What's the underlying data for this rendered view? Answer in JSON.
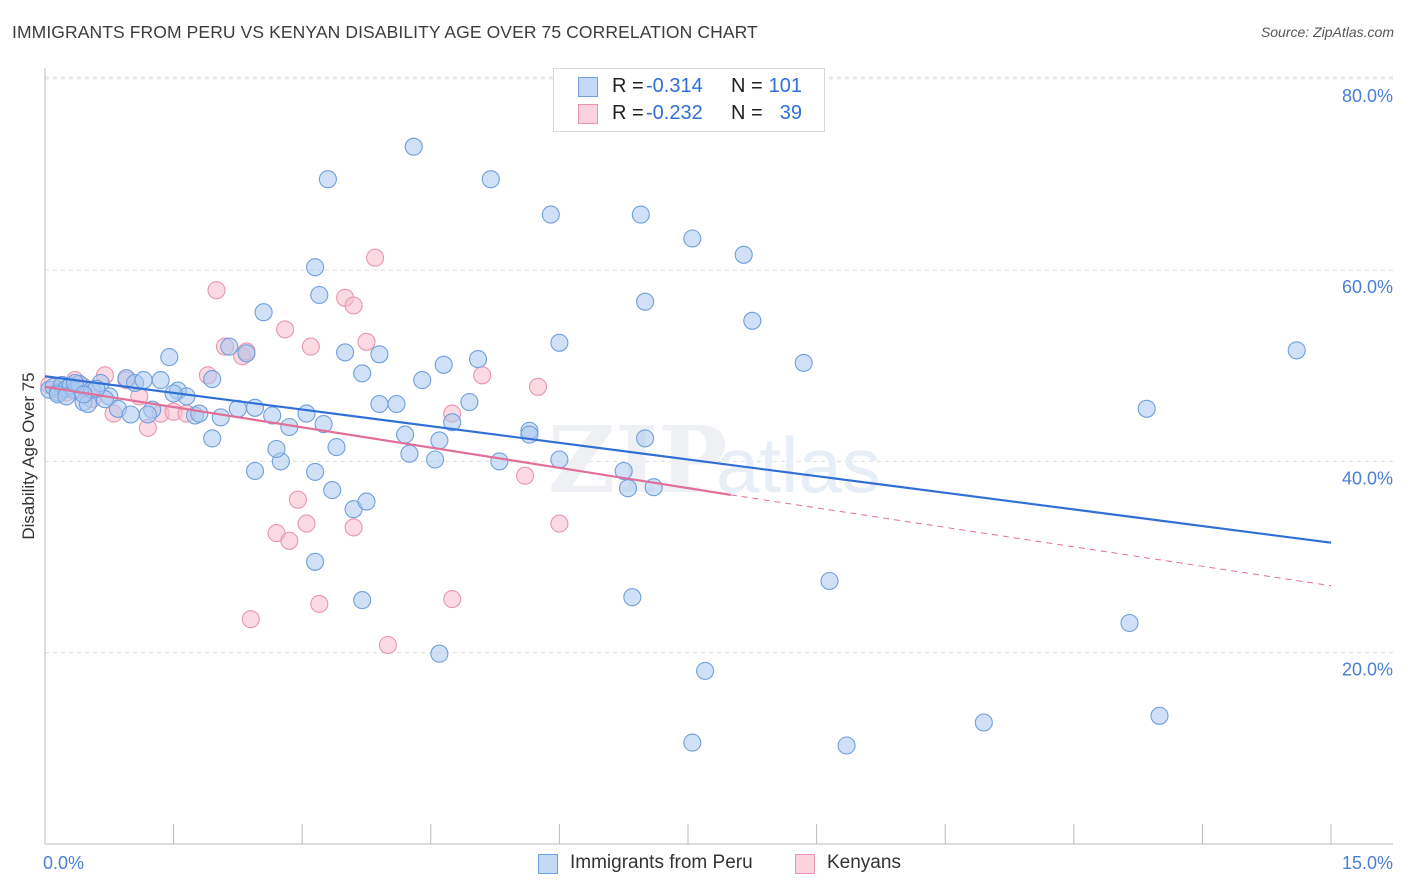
{
  "header": {
    "title": "IMMIGRANTS FROM PERU VS KENYAN DISABILITY AGE OVER 75 CORRELATION CHART",
    "source": "Source: ZipAtlas.com"
  },
  "stats_legend": {
    "rows": [
      {
        "r_label": "R =",
        "r_value": "-0.314",
        "n_label": "N =",
        "n_value": "101"
      },
      {
        "r_label": "R =",
        "r_value": "-0.232",
        "n_label": "N =",
        "n_value": "39"
      }
    ]
  },
  "watermark": {
    "bold": "ZIP",
    "light": "atlas"
  },
  "colors": {
    "peru_fill": "#aac8f0",
    "peru_stroke": "#6f9fdc",
    "peru_line": "#2f6fd6",
    "kenya_fill": "#f7bccd",
    "kenya_stroke": "#e896b0",
    "kenya_line": "#e0709a",
    "axis_label": "#4a7fd4",
    "grid": "#dcdcdc"
  },
  "chart_data": {
    "type": "scatter",
    "title": "IMMIGRANTS FROM PERU VS KENYAN DISABILITY AGE OVER 75 CORRELATION CHART",
    "xlabel": "",
    "ylabel": "Disability Age Over 75",
    "xlim": [
      0,
      15
    ],
    "ylim": [
      0,
      85
    ],
    "x_tick_labels": [
      "0.0%",
      "15.0%"
    ],
    "y_ticks": [
      20,
      40,
      60,
      80
    ],
    "y_tick_labels": [
      "20.0%",
      "40.0%",
      "60.0%",
      "80.0%"
    ],
    "grid": "horizontal-dashed",
    "legend_position": "top-center and bottom",
    "series": [
      {
        "name": "Immigrants from Peru",
        "color": "#6f9fdc",
        "points": [
          [
            0.05,
            47.5
          ],
          [
            0.1,
            47.8
          ],
          [
            0.15,
            47.2
          ],
          [
            0.2,
            48.0
          ],
          [
            0.25,
            47.6
          ],
          [
            0.3,
            47.9
          ],
          [
            0.35,
            47.4
          ],
          [
            0.4,
            48.1
          ],
          [
            0.45,
            46.2
          ],
          [
            0.5,
            46.0
          ],
          [
            0.55,
            47.5
          ],
          [
            0.65,
            48.2
          ],
          [
            0.75,
            46.8
          ],
          [
            0.85,
            45.5
          ],
          [
            0.95,
            48.7
          ],
          [
            1.05,
            48.2
          ],
          [
            1.15,
            48.5
          ],
          [
            1.25,
            45.4
          ],
          [
            1.35,
            48.5
          ],
          [
            1.45,
            50.9
          ],
          [
            1.55,
            47.4
          ],
          [
            1.65,
            46.8
          ],
          [
            1.75,
            44.8
          ],
          [
            1.95,
            48.6
          ],
          [
            2.15,
            52.0
          ],
          [
            2.35,
            51.3
          ],
          [
            2.55,
            55.6
          ],
          [
            1.2,
            44.9
          ],
          [
            0.7,
            46.5
          ],
          [
            1.8,
            45.0
          ],
          [
            2.05,
            44.6
          ],
          [
            2.25,
            45.5
          ],
          [
            2.45,
            45.6
          ],
          [
            2.65,
            44.8
          ],
          [
            2.85,
            43.6
          ],
          [
            3.05,
            45.0
          ],
          [
            3.25,
            43.9
          ],
          [
            1.95,
            42.4
          ],
          [
            1.5,
            47.1
          ],
          [
            1.0,
            44.9
          ],
          [
            2.45,
            39.0
          ],
          [
            2.75,
            40.0
          ],
          [
            3.15,
            38.9
          ],
          [
            2.7,
            41.3
          ],
          [
            3.4,
            41.5
          ],
          [
            3.6,
            35.0
          ],
          [
            3.35,
            37.0
          ],
          [
            3.75,
            35.8
          ],
          [
            3.7,
            49.2
          ],
          [
            3.9,
            46.0
          ],
          [
            4.1,
            46.0
          ],
          [
            4.2,
            42.8
          ],
          [
            4.4,
            48.5
          ],
          [
            4.65,
            50.1
          ],
          [
            4.75,
            44.1
          ],
          [
            4.95,
            46.2
          ],
          [
            5.05,
            50.7
          ],
          [
            3.15,
            29.5
          ],
          [
            3.5,
            51.4
          ],
          [
            3.9,
            51.2
          ],
          [
            4.25,
            40.8
          ],
          [
            4.55,
            40.2
          ],
          [
            4.6,
            42.2
          ],
          [
            4.6,
            19.9
          ],
          [
            3.7,
            25.5
          ],
          [
            3.3,
            69.5
          ],
          [
            3.2,
            57.4
          ],
          [
            3.15,
            60.3
          ],
          [
            4.3,
            72.9
          ],
          [
            5.2,
            69.5
          ],
          [
            5.9,
            65.8
          ],
          [
            6.95,
            65.8
          ],
          [
            7.55,
            63.3
          ],
          [
            8.15,
            61.6
          ],
          [
            6.0,
            52.4
          ],
          [
            7.0,
            56.7
          ],
          [
            8.25,
            54.7
          ],
          [
            8.85,
            50.3
          ],
          [
            7.0,
            42.4
          ],
          [
            6.0,
            40.2
          ],
          [
            5.65,
            43.2
          ],
          [
            5.65,
            42.8
          ],
          [
            5.3,
            40.0
          ],
          [
            6.75,
            39.0
          ],
          [
            6.8,
            37.2
          ],
          [
            7.1,
            37.3
          ],
          [
            6.85,
            25.8
          ],
          [
            7.7,
            18.1
          ],
          [
            9.15,
            27.5
          ],
          [
            9.35,
            10.3
          ],
          [
            7.55,
            10.6
          ],
          [
            10.95,
            12.7
          ],
          [
            12.65,
            23.1
          ],
          [
            13.0,
            13.4
          ],
          [
            12.85,
            45.5
          ],
          [
            14.6,
            51.6
          ],
          [
            0.15,
            47.0
          ],
          [
            0.25,
            46.8
          ],
          [
            0.6,
            47.6
          ],
          [
            0.35,
            48.2
          ],
          [
            0.45,
            47.0
          ]
        ],
        "trend": {
          "x0": 0,
          "y0": 48.9,
          "x1": 15,
          "y1": 31.5
        }
      },
      {
        "name": "Kenyans",
        "color": "#e896b0",
        "points": [
          [
            0.05,
            48.0
          ],
          [
            0.15,
            47.5
          ],
          [
            0.25,
            47.2
          ],
          [
            0.35,
            48.5
          ],
          [
            0.45,
            47.8
          ],
          [
            0.55,
            46.5
          ],
          [
            0.7,
            49.0
          ],
          [
            0.8,
            45.0
          ],
          [
            0.95,
            48.5
          ],
          [
            1.1,
            46.8
          ],
          [
            1.2,
            43.5
          ],
          [
            1.35,
            45.0
          ],
          [
            1.5,
            45.2
          ],
          [
            1.65,
            45.0
          ],
          [
            1.9,
            49.0
          ],
          [
            2.0,
            57.9
          ],
          [
            2.1,
            52.0
          ],
          [
            2.3,
            51.0
          ],
          [
            2.35,
            51.5
          ],
          [
            2.8,
            53.8
          ],
          [
            3.1,
            52.0
          ],
          [
            3.5,
            57.1
          ],
          [
            3.6,
            56.3
          ],
          [
            3.85,
            61.3
          ],
          [
            3.75,
            52.5
          ],
          [
            2.95,
            36.0
          ],
          [
            2.7,
            32.5
          ],
          [
            2.85,
            31.7
          ],
          [
            3.05,
            33.5
          ],
          [
            3.6,
            33.1
          ],
          [
            2.4,
            23.5
          ],
          [
            3.2,
            25.1
          ],
          [
            4.0,
            20.8
          ],
          [
            4.75,
            25.6
          ],
          [
            4.75,
            45.0
          ],
          [
            5.1,
            49.0
          ],
          [
            5.75,
            47.8
          ],
          [
            5.6,
            38.5
          ],
          [
            6.0,
            33.5
          ]
        ],
        "trend": {
          "x0": 0,
          "y0": 47.8,
          "x1": 8,
          "y1": 36.5
        },
        "trend_extension": {
          "x0": 8,
          "y0": 36.5,
          "x1": 15,
          "y1": 27.0
        }
      }
    ]
  }
}
